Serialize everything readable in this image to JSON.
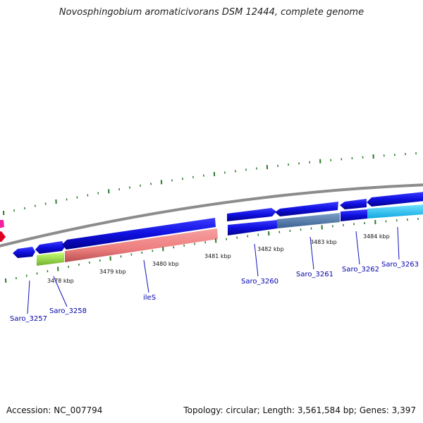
{
  "title": "Novosphingobium aromaticivorans DSM 12444, complete genome",
  "footer": {
    "accession": "Accession: NC_007794",
    "topology": "Topology: circular; Length: 3,561,584 bp; Genes: 3,397"
  },
  "scale_labels": [
    "3478 kbp",
    "3479 kbp",
    "3480 kbp",
    "3481 kbp",
    "3482 kbp",
    "3483 kbp",
    "3484 kbp"
  ],
  "gene_labels": [
    "Saro_3257",
    "Saro_3258",
    "ileS",
    "Saro_3260",
    "Saro_3261",
    "Saro_3262",
    "Saro_3263"
  ],
  "colors": {
    "cds": "#1010e0",
    "rrna": "#f08080",
    "green_feature": "#a0e040",
    "steel_feature": "#5080b0",
    "cyan_feature": "#30c8f0",
    "magenta_feature": "#f020a0",
    "red_feature": "#e00020",
    "backbone": "#8c8c8c",
    "ticks": "#2a7a2a",
    "gene_label_text": "#0000aa"
  }
}
